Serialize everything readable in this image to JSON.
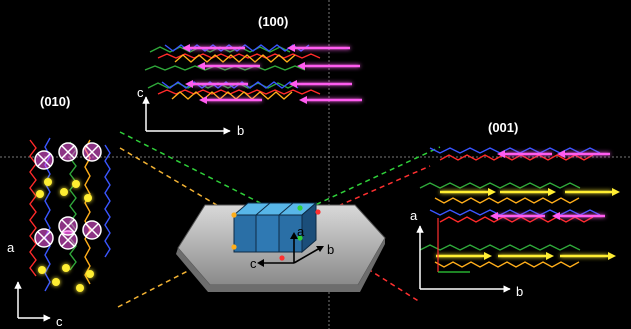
{
  "views": {
    "v100": {
      "label": "(100)",
      "axes": {
        "vertical": "c",
        "horizontal": "b"
      }
    },
    "v010": {
      "label": "(010)",
      "axes": {
        "vertical": "a",
        "horizontal": "c"
      }
    },
    "v001": {
      "label": "(001)",
      "axes": {
        "vertical": "a",
        "horizontal": "b"
      }
    }
  },
  "crystal": {
    "axes": {
      "a": "a",
      "b": "b",
      "c": "c"
    }
  },
  "colors": {
    "background": "#000000",
    "guide_line": "#777777",
    "green_dash": "#2fd13a",
    "red_dash": "#ff3030",
    "yellow_dash": "#f2b233",
    "block_blue": "#2a6fa6",
    "block_top": "#58b6e8",
    "pink_arrow": "#ff5cf0",
    "yellow_arrow": "#ffee33",
    "mol_red": "#ff2a2a",
    "mol_blue": "#3a56ff",
    "mol_green": "#2fa83a",
    "mol_orange": "#ffae1a"
  }
}
